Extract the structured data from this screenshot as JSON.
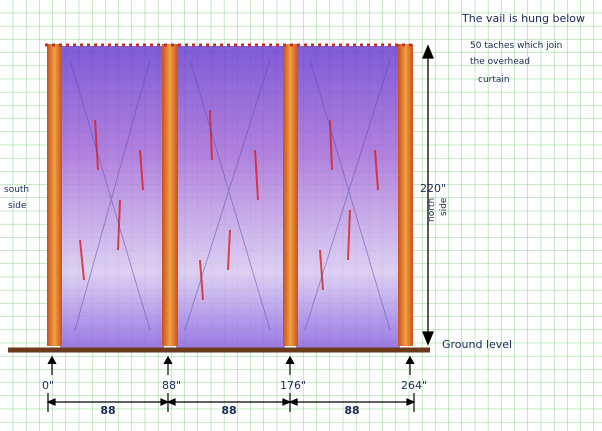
{
  "note": {
    "lines": [
      "The vail is hung below",
      "50 taches which join",
      "the overhead",
      "curtain"
    ]
  },
  "south_label": {
    "lines": [
      "south",
      "side"
    ]
  },
  "height_label": "220\"",
  "north_label": {
    "lines": [
      "north",
      "side"
    ]
  },
  "ground_label": "Ground level",
  "positions": [
    "0\"",
    "88\"",
    "176\"",
    "264\""
  ],
  "spans": [
    "88",
    "88",
    "88"
  ]
}
